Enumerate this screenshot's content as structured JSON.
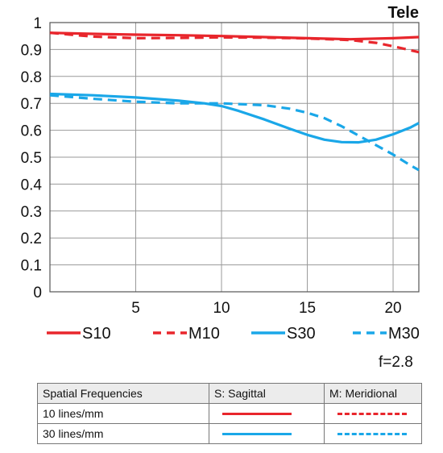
{
  "chart_data": {
    "type": "line",
    "title": "Tele",
    "xlim": [
      0,
      21.5
    ],
    "ylim": [
      0,
      1
    ],
    "x_ticks": [
      5,
      10,
      15,
      20
    ],
    "y_ticks": [
      "0",
      "0.1",
      "0.2",
      "0.3",
      "0.4",
      "0.5",
      "0.6",
      "0.7",
      "0.8",
      "0.9",
      "1"
    ],
    "grid": true,
    "series": [
      {
        "name": "S10",
        "color": "#e8262c",
        "dash": false,
        "x": [
          0,
          2.5,
          5,
          7.5,
          10,
          12.5,
          15,
          17.5,
          20,
          21.5
        ],
        "y": [
          0.962,
          0.958,
          0.955,
          0.953,
          0.95,
          0.946,
          0.942,
          0.938,
          0.942,
          0.946
        ]
      },
      {
        "name": "M10",
        "color": "#e8262c",
        "dash": true,
        "x": [
          0,
          2.5,
          5,
          7.5,
          10,
          12.5,
          15,
          17.5,
          19,
          20,
          21.5
        ],
        "y": [
          0.962,
          0.948,
          0.942,
          0.943,
          0.945,
          0.944,
          0.941,
          0.935,
          0.925,
          0.912,
          0.89
        ]
      },
      {
        "name": "S30",
        "color": "#1aa7e8",
        "dash": false,
        "x": [
          0,
          2.5,
          5,
          7.5,
          9,
          10,
          11,
          12.5,
          14,
          15,
          16,
          17,
          18,
          19,
          20,
          21,
          21.5
        ],
        "y": [
          0.735,
          0.73,
          0.722,
          0.71,
          0.7,
          0.69,
          0.672,
          0.64,
          0.605,
          0.583,
          0.565,
          0.556,
          0.555,
          0.565,
          0.585,
          0.61,
          0.627
        ]
      },
      {
        "name": "M30",
        "color": "#1aa7e8",
        "dash": true,
        "x": [
          0,
          2.5,
          5,
          7.5,
          10,
          12.5,
          14,
          15,
          16,
          17,
          18,
          19,
          20,
          21,
          21.5
        ],
        "y": [
          0.73,
          0.717,
          0.706,
          0.7,
          0.7,
          0.693,
          0.68,
          0.665,
          0.645,
          0.615,
          0.58,
          0.545,
          0.51,
          0.47,
          0.452
        ]
      }
    ],
    "legend_placement": "bottom"
  },
  "annotation": "f=2.8",
  "table": {
    "headers": [
      "Spatial Frequencies",
      "S: Sagittal",
      "M: Meridional"
    ],
    "rows": [
      {
        "label": "10 lines/mm",
        "color": "#e8262c"
      },
      {
        "label": "30 lines/mm",
        "color": "#1aa7e8"
      }
    ]
  }
}
